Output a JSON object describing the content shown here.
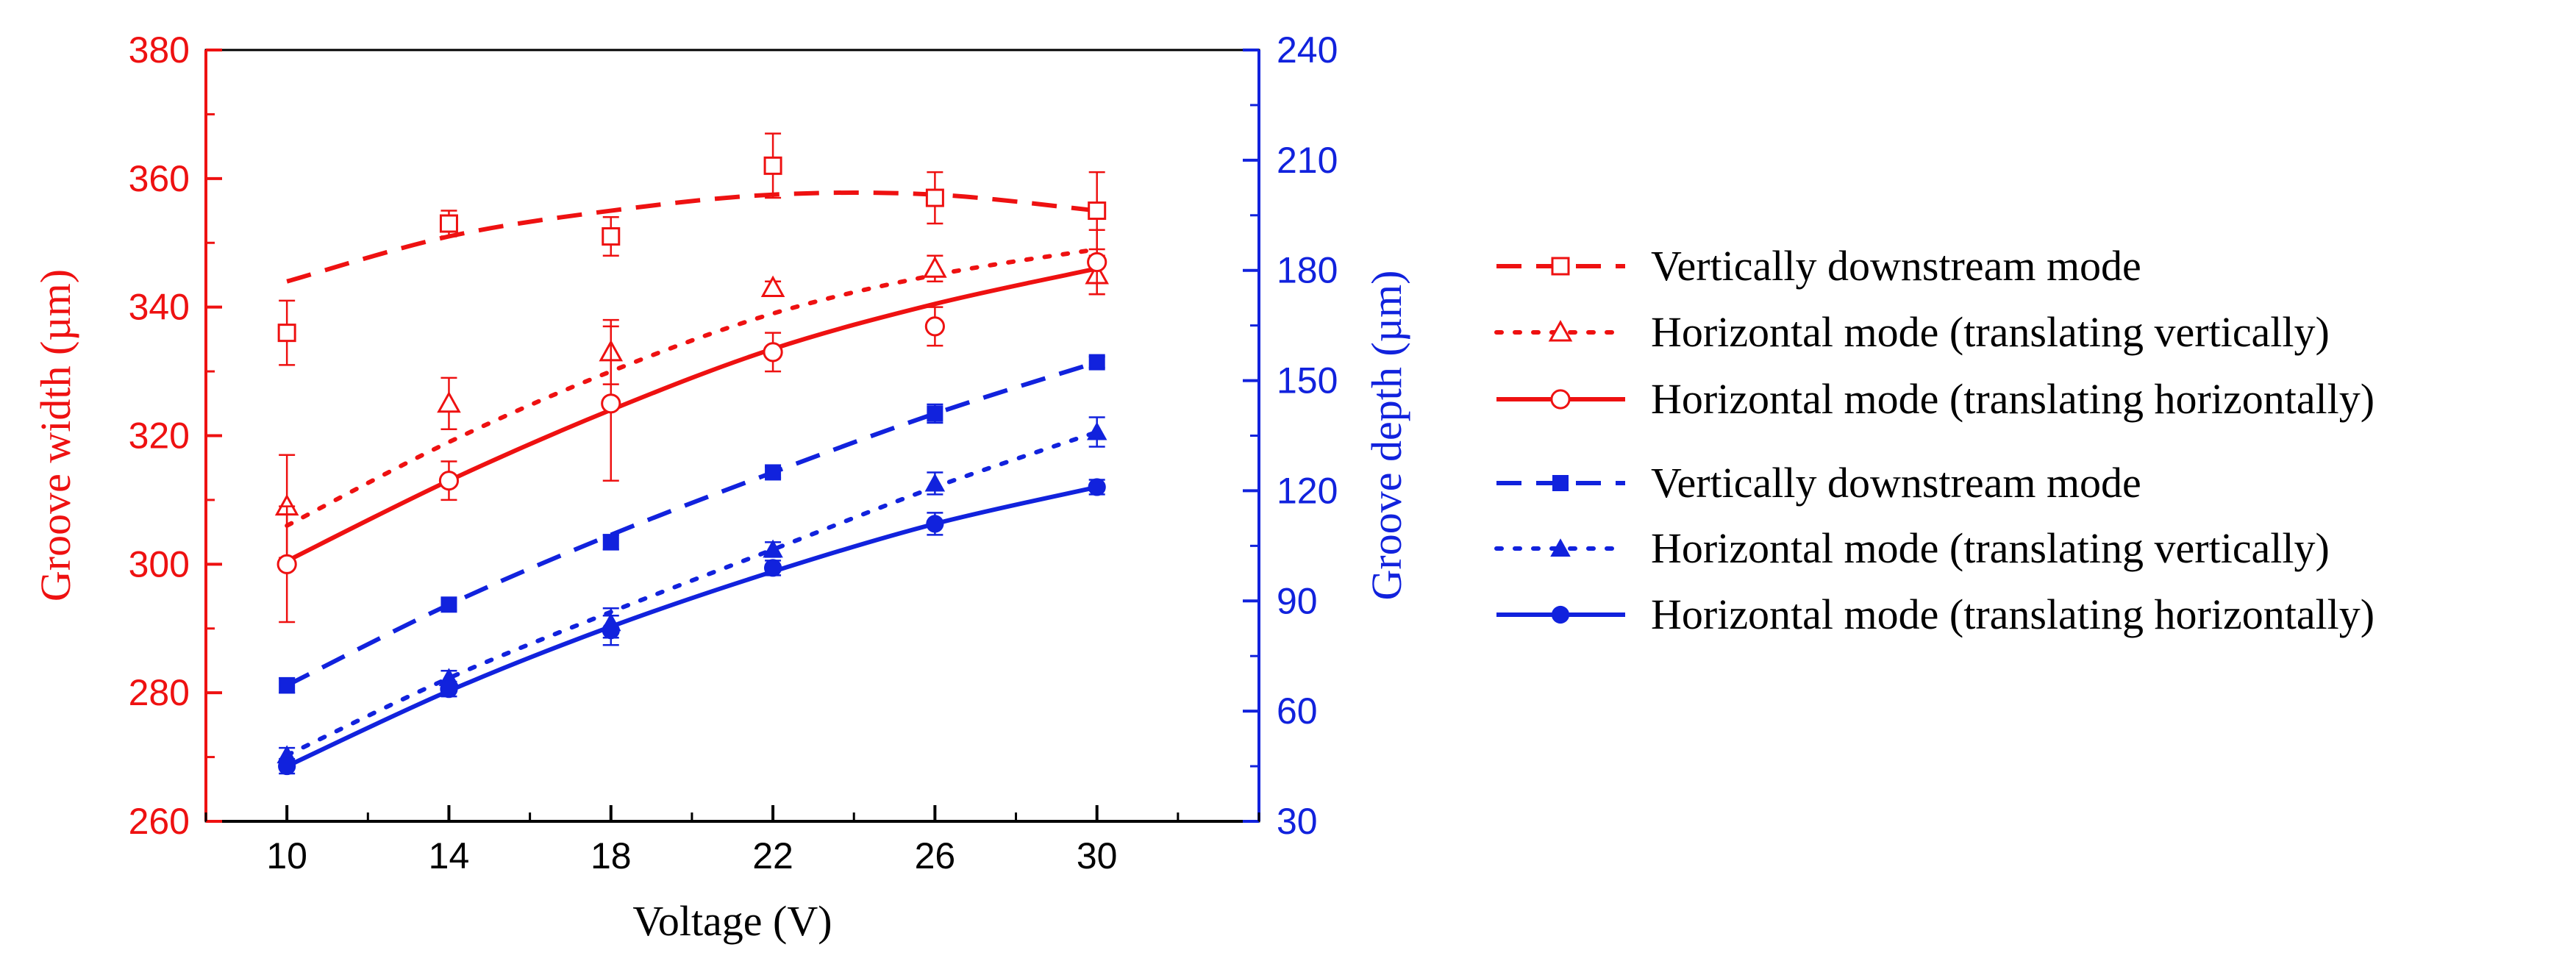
{
  "chart_data": {
    "type": "line",
    "x": [
      10,
      14,
      18,
      22,
      26,
      30
    ],
    "xlabel": "Voltage (V)",
    "ylabel": "Groove width (µm)",
    "y2label": "Groove depth (µm)",
    "xlim": [
      8,
      34
    ],
    "ylim": [
      260,
      380
    ],
    "y2lim": [
      30,
      240
    ],
    "xticks": [
      "10",
      "14",
      "18",
      "22",
      "26",
      "30"
    ],
    "yticks": [
      "260",
      "280",
      "300",
      "320",
      "340",
      "360",
      "380"
    ],
    "y2ticks": [
      "30",
      "60",
      "90",
      "120",
      "150",
      "180",
      "210",
      "240"
    ],
    "legend_position": "right",
    "colors": {
      "width": "#ee1111",
      "depth": "#1122dd"
    },
    "series": [
      {
        "name": "Vertically downstream mode",
        "axis": "left",
        "color": "#ee1111",
        "marker": "square-open",
        "line": "dashed",
        "values": [
          336,
          353,
          351,
          362,
          357,
          355
        ],
        "errors": [
          5,
          2,
          3,
          5,
          4,
          6
        ],
        "fit": [
          344,
          351,
          355,
          357.5,
          357.5,
          355
        ]
      },
      {
        "name": "Horizontal mode (translating vertically)",
        "axis": "left",
        "color": "#ee1111",
        "marker": "triangle-open",
        "line": "dotted",
        "values": [
          309,
          325,
          333,
          343,
          346,
          345
        ],
        "errors": [
          8,
          4,
          5,
          1,
          2,
          3
        ],
        "fit": [
          306,
          319,
          330,
          339,
          345,
          349
        ]
      },
      {
        "name": "Horizontal mode (translating horizontally)",
        "axis": "left",
        "color": "#ee1111",
        "marker": "circle-open",
        "line": "solid",
        "values": [
          300,
          313,
          325,
          333,
          337,
          347
        ],
        "errors": [
          9,
          3,
          12,
          3,
          3,
          5
        ],
        "fit": [
          300.5,
          313,
          324,
          333.5,
          340.5,
          346
        ]
      },
      {
        "name": "Vertically downstream mode",
        "axis": "right",
        "color": "#1122dd",
        "marker": "square-filled",
        "line": "dashed",
        "values": [
          67,
          89,
          106,
          125,
          141,
          155
        ],
        "errors": [
          2,
          1.5,
          2,
          1.5,
          2.5,
          1.5
        ],
        "fit": [
          67,
          89,
          108,
          125,
          141,
          155
        ]
      },
      {
        "name": "Horizontal mode (translating vertically)",
        "axis": "right",
        "color": "#1122dd",
        "marker": "triangle-filled",
        "line": "dotted",
        "values": [
          48,
          69,
          84,
          104,
          122,
          136
        ],
        "errors": [
          2,
          2,
          4,
          2,
          3,
          4
        ],
        "fit": [
          48,
          69,
          87,
          104,
          121,
          136
        ]
      },
      {
        "name": "Horizontal mode (translating horizontally)",
        "axis": "right",
        "color": "#1122dd",
        "marker": "circle-filled",
        "line": "solid",
        "values": [
          45,
          66,
          82,
          99,
          111,
          121
        ],
        "errors": [
          2,
          2,
          4,
          2,
          3,
          2
        ],
        "fit": [
          45,
          65.5,
          83,
          98,
          111,
          121
        ]
      }
    ]
  }
}
